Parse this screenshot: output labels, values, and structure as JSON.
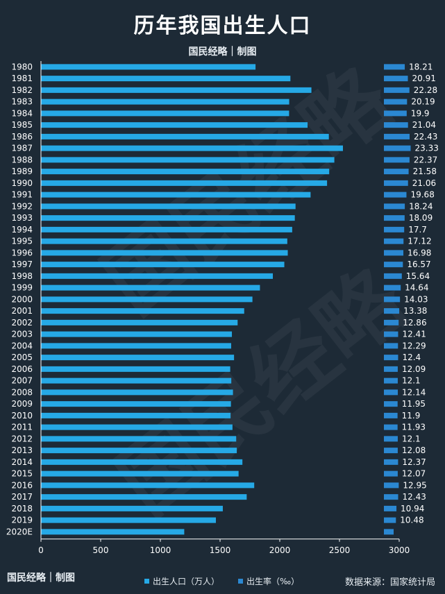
{
  "header": {
    "title": "历年我国出生人口",
    "subtitle": "国民经略｜制图"
  },
  "footer": {
    "logo": "国民经略｜制图",
    "legend_population": "出生人口（万人）",
    "legend_rate": "出生率（‰）",
    "source": "数据来源：国家统计局"
  },
  "watermark": "国民经略",
  "colors": {
    "background": "#1d2a36",
    "population_bar": "#26a9e6",
    "rate_bar": "#2b88d2",
    "text": "#ffffff"
  },
  "chart_data": {
    "type": "bar",
    "orientation": "horizontal",
    "categories": [
      "1980",
      "1981",
      "1982",
      "1983",
      "1984",
      "1985",
      "1986",
      "1987",
      "1988",
      "1989",
      "1990",
      "1991",
      "1992",
      "1993",
      "1994",
      "1995",
      "1996",
      "1997",
      "1998",
      "1999",
      "2000",
      "2001",
      "2002",
      "2003",
      "2004",
      "2005",
      "2006",
      "2007",
      "2008",
      "2009",
      "2010",
      "2011",
      "2012",
      "2013",
      "2014",
      "2015",
      "2016",
      "2017",
      "2018",
      "2019",
      "2020E"
    ],
    "series": [
      {
        "name": "出生人口（万人）",
        "values": [
          1797,
          2089,
          2265,
          2079,
          2078,
          2233,
          2411,
          2529,
          2457,
          2414,
          2396,
          2258,
          2132,
          2126,
          2104,
          2063,
          2067,
          2038,
          1942,
          1834,
          1771,
          1702,
          1647,
          1599,
          1593,
          1617,
          1585,
          1594,
          1608,
          1591,
          1588,
          1604,
          1635,
          1640,
          1687,
          1655,
          1786,
          1723,
          1523,
          1465,
          1200
        ]
      },
      {
        "name": "出生率（‰）",
        "values": [
          18.21,
          20.91,
          22.28,
          20.19,
          19.9,
          21.04,
          22.43,
          23.33,
          22.37,
          21.58,
          21.06,
          19.68,
          18.24,
          18.09,
          17.7,
          17.12,
          16.98,
          16.57,
          15.64,
          14.64,
          14.03,
          13.38,
          12.86,
          12.41,
          12.29,
          12.4,
          12.09,
          12.1,
          12.14,
          11.95,
          11.9,
          11.93,
          12.1,
          12.08,
          12.37,
          12.07,
          12.95,
          12.43,
          10.94,
          10.48,
          8.5
        ],
        "labels": [
          "18.21",
          "20.91",
          "22.28",
          "20.19",
          "19.9",
          "21.04",
          "22.43",
          "23.33",
          "22.37",
          "21.58",
          "21.06",
          "19.68",
          "18.24",
          "18.09",
          "17.7",
          "17.12",
          "16.98",
          "16.57",
          "15.64",
          "14.64",
          "14.03",
          "13.38",
          "12.86",
          "12.41",
          "12.29",
          "12.4",
          "12.09",
          "12.1",
          "12.14",
          "11.95",
          "11.9",
          "11.93",
          "12.1",
          "12.08",
          "12.37",
          "12.07",
          "12.95",
          "12.43",
          "10.94",
          "10.48",
          ""
        ]
      }
    ],
    "xticks": [
      0,
      500,
      1000,
      1500,
      2000,
      2500,
      3000
    ],
    "xlim": [
      0,
      3000
    ],
    "rate_xlim": [
      0,
      40
    ],
    "grid": false,
    "legend": "bottom"
  }
}
